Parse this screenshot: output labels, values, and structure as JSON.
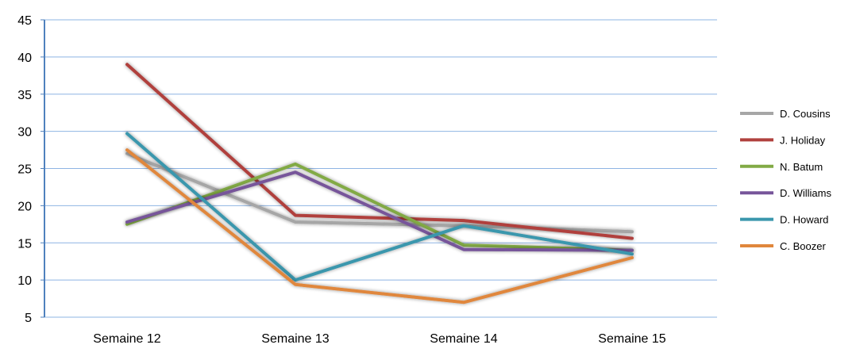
{
  "chart_data": {
    "type": "line",
    "title": "",
    "xlabel": "",
    "ylabel": "",
    "categories": [
      "Semaine 12",
      "Semaine 13",
      "Semaine 14",
      "Semaine 15"
    ],
    "ylim": [
      5,
      45
    ],
    "yticks": [
      5,
      10,
      15,
      20,
      25,
      30,
      35,
      40,
      45
    ],
    "grid": "horizontal",
    "legend_position": "right",
    "series": [
      {
        "name": "D. Cousins",
        "color": "#a6a6a6",
        "values": [
          27,
          17.8,
          17.3,
          16.5
        ]
      },
      {
        "name": "J. Holiday",
        "color": "#b0413e",
        "values": [
          39,
          18.7,
          18,
          15.6
        ]
      },
      {
        "name": "N. Batum",
        "color": "#82aa45",
        "values": [
          17.5,
          25.6,
          14.7,
          14
        ]
      },
      {
        "name": "D. Williams",
        "color": "#77559a",
        "values": [
          17.8,
          24.5,
          14.1,
          14
        ]
      },
      {
        "name": "D. Howard",
        "color": "#3a97ad",
        "values": [
          29.7,
          10,
          17.3,
          13.5
        ]
      },
      {
        "name": "C. Boozer",
        "color": "#e0873c",
        "values": [
          27.5,
          9.4,
          7,
          13
        ]
      }
    ]
  }
}
